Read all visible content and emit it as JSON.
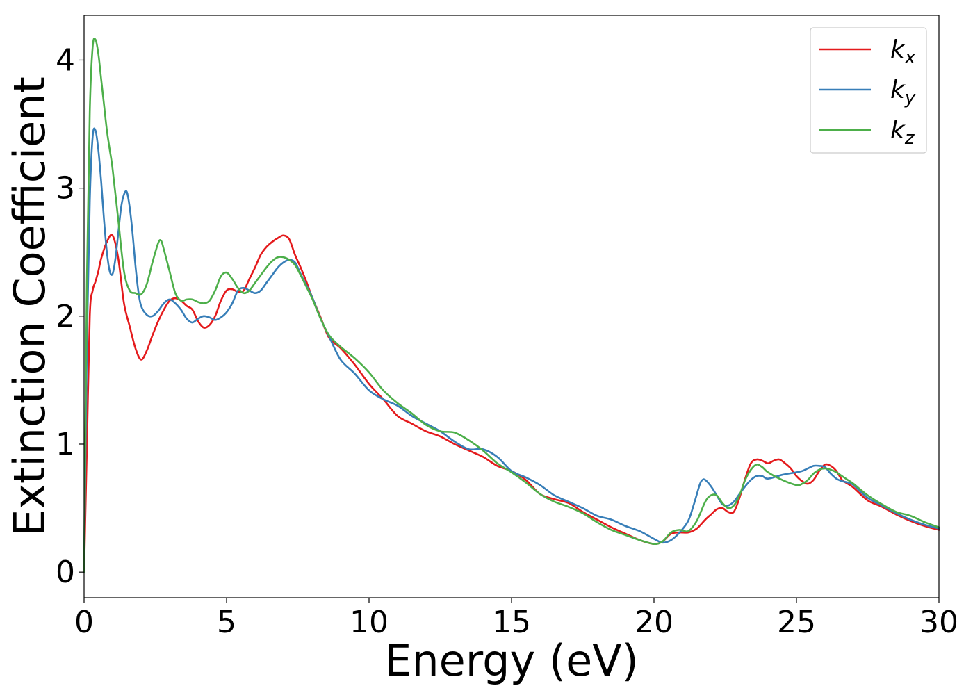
{
  "chart_data": {
    "type": "line",
    "xlabel": "Energy (eV)",
    "ylabel": "Extinction Coefficient",
    "xlim": [
      0,
      30
    ],
    "ylim": [
      -0.2,
      4.35
    ],
    "xticks": [
      0,
      5,
      10,
      15,
      20,
      25,
      30
    ],
    "yticks": [
      0,
      1,
      2,
      3,
      4
    ],
    "grid": false,
    "legend_position": "top-right",
    "series": [
      {
        "name": "k_x",
        "base": "k",
        "sub": "x",
        "color": "#e41a1c",
        "x": [
          0.0,
          0.1,
          0.2,
          0.3,
          0.4,
          0.5,
          0.6,
          0.8,
          1.0,
          1.2,
          1.4,
          1.6,
          1.8,
          2.0,
          2.2,
          2.4,
          2.6,
          2.8,
          3.0,
          3.2,
          3.4,
          3.6,
          3.8,
          4.0,
          4.2,
          4.4,
          4.6,
          4.8,
          5.0,
          5.2,
          5.4,
          5.6,
          5.8,
          6.0,
          6.2,
          6.4,
          6.6,
          6.8,
          7.0,
          7.2,
          7.4,
          7.6,
          7.8,
          8.0,
          8.3,
          8.6,
          9.0,
          9.5,
          10.0,
          10.5,
          11.0,
          11.5,
          12.0,
          12.5,
          13.0,
          13.5,
          14.0,
          14.5,
          15.0,
          15.5,
          16.0,
          16.5,
          17.0,
          17.5,
          18.0,
          18.5,
          19.0,
          19.5,
          20.0,
          20.3,
          20.6,
          20.9,
          21.2,
          21.5,
          21.8,
          22.0,
          22.2,
          22.4,
          22.6,
          22.8,
          23.0,
          23.2,
          23.4,
          23.6,
          23.8,
          24.0,
          24.2,
          24.4,
          24.6,
          24.8,
          25.0,
          25.2,
          25.4,
          25.6,
          25.8,
          26.0,
          26.2,
          26.4,
          26.6,
          26.8,
          27.0,
          27.5,
          28.0,
          28.5,
          29.0,
          29.5,
          30.0
        ],
        "values": [
          0.0,
          1.0,
          2.0,
          2.2,
          2.27,
          2.35,
          2.45,
          2.58,
          2.63,
          2.45,
          2.1,
          1.92,
          1.75,
          1.66,
          1.73,
          1.85,
          1.96,
          2.05,
          2.12,
          2.14,
          2.12,
          2.08,
          2.05,
          1.96,
          1.91,
          1.93,
          2.0,
          2.12,
          2.2,
          2.21,
          2.19,
          2.2,
          2.29,
          2.38,
          2.48,
          2.54,
          2.58,
          2.61,
          2.63,
          2.6,
          2.48,
          2.38,
          2.27,
          2.15,
          1.99,
          1.83,
          1.75,
          1.62,
          1.47,
          1.35,
          1.22,
          1.16,
          1.1,
          1.06,
          1.0,
          0.95,
          0.9,
          0.83,
          0.79,
          0.72,
          0.61,
          0.57,
          0.54,
          0.47,
          0.41,
          0.35,
          0.3,
          0.25,
          0.22,
          0.24,
          0.3,
          0.31,
          0.31,
          0.34,
          0.41,
          0.45,
          0.49,
          0.5,
          0.47,
          0.47,
          0.58,
          0.73,
          0.85,
          0.88,
          0.87,
          0.85,
          0.87,
          0.88,
          0.85,
          0.81,
          0.75,
          0.71,
          0.69,
          0.72,
          0.79,
          0.84,
          0.83,
          0.79,
          0.72,
          0.69,
          0.66,
          0.56,
          0.51,
          0.45,
          0.4,
          0.36,
          0.33
        ]
      },
      {
        "name": "k_y",
        "base": "k",
        "sub": "y",
        "color": "#377eb8",
        "x": [
          0.0,
          0.1,
          0.2,
          0.3,
          0.4,
          0.5,
          0.6,
          0.7,
          0.8,
          0.9,
          1.0,
          1.1,
          1.2,
          1.3,
          1.4,
          1.5,
          1.6,
          1.7,
          1.8,
          1.9,
          2.0,
          2.2,
          2.4,
          2.6,
          2.8,
          3.0,
          3.2,
          3.4,
          3.6,
          3.8,
          4.0,
          4.2,
          4.4,
          4.6,
          4.8,
          5.0,
          5.2,
          5.4,
          5.6,
          5.8,
          6.0,
          6.2,
          6.4,
          6.6,
          6.8,
          7.0,
          7.2,
          7.4,
          7.6,
          7.8,
          8.0,
          8.3,
          8.6,
          9.0,
          9.5,
          10.0,
          10.5,
          11.0,
          11.5,
          12.0,
          12.5,
          13.0,
          13.5,
          14.0,
          14.5,
          15.0,
          15.5,
          16.0,
          16.5,
          17.0,
          17.5,
          18.0,
          18.5,
          19.0,
          19.5,
          20.0,
          20.3,
          20.6,
          20.9,
          21.2,
          21.4,
          21.6,
          21.7,
          21.8,
          22.0,
          22.2,
          22.4,
          22.6,
          22.8,
          23.0,
          23.2,
          23.4,
          23.6,
          23.8,
          24.0,
          24.5,
          25.0,
          25.2,
          25.4,
          25.6,
          25.8,
          26.0,
          26.2,
          26.4,
          26.6,
          26.8,
          27.0,
          27.5,
          28.0,
          28.5,
          29.0,
          29.5,
          30.0
        ],
        "values": [
          0.0,
          1.8,
          2.9,
          3.4,
          3.45,
          3.3,
          3.05,
          2.75,
          2.5,
          2.35,
          2.33,
          2.45,
          2.65,
          2.85,
          2.95,
          2.97,
          2.85,
          2.65,
          2.4,
          2.2,
          2.08,
          2.01,
          2.0,
          2.04,
          2.1,
          2.13,
          2.1,
          2.05,
          1.98,
          1.95,
          1.98,
          2.0,
          1.99,
          1.97,
          1.99,
          2.03,
          2.1,
          2.2,
          2.22,
          2.2,
          2.18,
          2.2,
          2.26,
          2.32,
          2.38,
          2.42,
          2.44,
          2.42,
          2.33,
          2.24,
          2.15,
          1.98,
          1.84,
          1.66,
          1.55,
          1.42,
          1.35,
          1.3,
          1.22,
          1.16,
          1.1,
          1.02,
          0.96,
          0.96,
          0.9,
          0.79,
          0.74,
          0.68,
          0.6,
          0.55,
          0.5,
          0.44,
          0.41,
          0.36,
          0.32,
          0.26,
          0.23,
          0.25,
          0.31,
          0.4,
          0.53,
          0.68,
          0.72,
          0.72,
          0.67,
          0.6,
          0.53,
          0.52,
          0.55,
          0.61,
          0.67,
          0.72,
          0.75,
          0.75,
          0.73,
          0.76,
          0.78,
          0.79,
          0.81,
          0.83,
          0.83,
          0.82,
          0.77,
          0.73,
          0.71,
          0.7,
          0.68,
          0.58,
          0.52,
          0.46,
          0.41,
          0.37,
          0.34
        ]
      },
      {
        "name": "k_z",
        "base": "k",
        "sub": "z",
        "color": "#4daf4a",
        "x": [
          0.0,
          0.1,
          0.2,
          0.3,
          0.4,
          0.5,
          0.6,
          0.7,
          0.8,
          0.9,
          1.0,
          1.2,
          1.4,
          1.6,
          1.8,
          2.0,
          2.2,
          2.4,
          2.6,
          2.7,
          2.8,
          3.0,
          3.2,
          3.4,
          3.6,
          3.8,
          4.0,
          4.2,
          4.4,
          4.6,
          4.8,
          5.0,
          5.2,
          5.4,
          5.6,
          5.8,
          6.0,
          6.2,
          6.4,
          6.6,
          6.8,
          7.0,
          7.2,
          7.4,
          7.6,
          7.8,
          8.0,
          8.3,
          8.6,
          9.0,
          9.5,
          10.0,
          10.5,
          11.0,
          11.5,
          12.0,
          12.5,
          13.0,
          13.5,
          14.0,
          14.5,
          15.0,
          15.5,
          16.0,
          16.5,
          17.0,
          17.5,
          18.0,
          18.5,
          19.0,
          19.5,
          20.0,
          20.3,
          20.6,
          20.9,
          21.2,
          21.5,
          21.8,
          22.0,
          22.2,
          22.4,
          22.6,
          22.8,
          23.0,
          23.2,
          23.4,
          23.6,
          23.8,
          24.0,
          24.5,
          25.0,
          25.2,
          25.4,
          25.6,
          25.8,
          26.0,
          26.2,
          26.4,
          26.6,
          26.8,
          27.0,
          27.5,
          28.0,
          28.5,
          29.0,
          29.5,
          30.0
        ],
        "values": [
          0.0,
          2.3,
          3.6,
          4.1,
          4.16,
          4.05,
          3.85,
          3.65,
          3.45,
          3.3,
          3.15,
          2.75,
          2.35,
          2.2,
          2.18,
          2.17,
          2.25,
          2.42,
          2.57,
          2.59,
          2.52,
          2.35,
          2.18,
          2.12,
          2.13,
          2.13,
          2.11,
          2.1,
          2.12,
          2.2,
          2.31,
          2.34,
          2.29,
          2.22,
          2.18,
          2.2,
          2.26,
          2.32,
          2.38,
          2.43,
          2.46,
          2.46,
          2.44,
          2.4,
          2.32,
          2.23,
          2.14,
          1.98,
          1.85,
          1.76,
          1.67,
          1.56,
          1.42,
          1.32,
          1.24,
          1.15,
          1.1,
          1.09,
          1.03,
          0.95,
          0.85,
          0.78,
          0.7,
          0.61,
          0.55,
          0.51,
          0.46,
          0.39,
          0.33,
          0.29,
          0.25,
          0.22,
          0.24,
          0.31,
          0.33,
          0.32,
          0.4,
          0.55,
          0.6,
          0.6,
          0.54,
          0.5,
          0.52,
          0.6,
          0.72,
          0.8,
          0.84,
          0.82,
          0.78,
          0.72,
          0.68,
          0.69,
          0.72,
          0.77,
          0.8,
          0.81,
          0.8,
          0.78,
          0.75,
          0.72,
          0.69,
          0.6,
          0.53,
          0.47,
          0.44,
          0.39,
          0.35
        ]
      }
    ]
  }
}
